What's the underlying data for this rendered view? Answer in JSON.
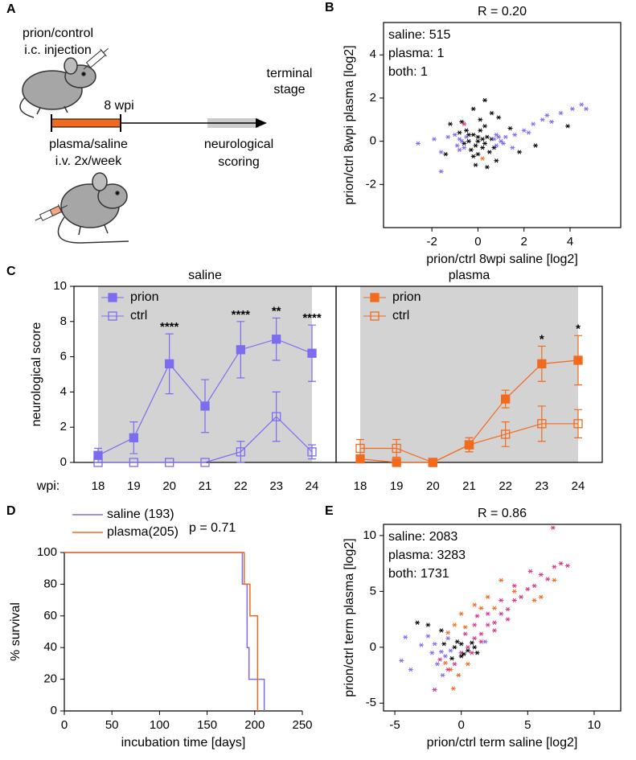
{
  "panel_labels": [
    "A",
    "B",
    "C",
    "D",
    "E"
  ],
  "diagram": {
    "injection": [
      "prion/control",
      "i.c. injection"
    ],
    "duration": "8 wpi",
    "endpoint": [
      "terminal",
      "stage"
    ],
    "treatment": [
      "plasma/saline",
      "i.v. 2x/week"
    ],
    "scoring": [
      "neurological",
      "scoring"
    ]
  },
  "chart_data": [
    {
      "type": "scatter",
      "title": "R = 0.20",
      "frame": true,
      "xlabel": "prion/ctrl 8wpi saline [log2]",
      "ylabel": "prion/ctrl 8wpi plasma [log2]",
      "xlim": [
        -4.1,
        6.2
      ],
      "ylim": [
        -4,
        5.5
      ],
      "xticks": [
        -2,
        0,
        2,
        4
      ],
      "yticks": [
        -2,
        0,
        2,
        4
      ],
      "series": [
        {
          "color": "#000000",
          "x": [
            -0.4,
            -0.2,
            0,
            0.2,
            0.4,
            -0.3,
            0.1,
            0,
            0.3,
            -0.2,
            0.5,
            -0.5,
            0.1,
            -0.1,
            0.6,
            0.4,
            -0.7,
            0.8,
            1.4,
            -1.4,
            0.3,
            -0.2,
            0.9,
            1.8,
            -1.2,
            3.9,
            2.5,
            0,
            -0.1,
            0.2,
            -0.6,
            0.6,
            -0.4,
            0.3,
            -0.8,
            0.7
          ],
          "values": [
            0,
            0.3,
            0,
            -0.3,
            0.2,
            -0.4,
            0.5,
            -0.6,
            0.7,
            -0.7,
            -0.5,
            0.5,
            1.0,
            -1.1,
            1.3,
            -1.2,
            0.9,
            -0.9,
            0.6,
            -0.6,
            1.9,
            1.5,
            1.1,
            -0.5,
            0.8,
            0.7,
            -0.2,
            0.2,
            -0.2,
            0.1,
            -0.1,
            0.1,
            0.3,
            -0.1,
            0.4,
            -0.3
          ]
        },
        {
          "name": "saline: 515",
          "color": "#7b6cf0",
          "x": [
            -2.6,
            -1.9,
            -1.6,
            -1.3,
            -0.9,
            -0.8,
            -0.7,
            -0.6,
            -0.5,
            -1.0,
            -0.8,
            0.7,
            0.8,
            0.9,
            1.0,
            1.1,
            0.8,
            1.2,
            1.6,
            2.0,
            2.4,
            2.8,
            3.2,
            3.6,
            4.1,
            4.5,
            4.7,
            2.2,
            3.0,
            -1.6,
            1.5
          ],
          "values": [
            -0.1,
            0.1,
            -0.5,
            0.2,
            -0.2,
            0.1,
            0.0,
            -0.3,
            0.2,
            0.3,
            -0.4,
            0.1,
            -0.2,
            0.2,
            0.0,
            -0.1,
            0.3,
            0.2,
            0.3,
            0.5,
            0.8,
            1.0,
            0.9,
            1.3,
            1.5,
            1.7,
            1.5,
            0.4,
            1.2,
            -1.4,
            -0.3
          ]
        },
        {
          "name": "plasma: 1",
          "color": "#f26a1e",
          "x": [
            0.2
          ],
          "values": [
            -0.8
          ]
        },
        {
          "name": "both: 1",
          "color": "#d6338a",
          "x": [
            -0.6
          ],
          "values": [
            0.8
          ]
        }
      ]
    },
    {
      "type": "line",
      "title": "saline",
      "frame": true,
      "shade": true,
      "ylabel": "neurological score",
      "xlabel": "wpi:",
      "categories": [
        "18",
        "19",
        "20",
        "21",
        "22",
        "23",
        "24"
      ],
      "ylim": [
        0,
        10
      ],
      "yticks": [
        0,
        2,
        4,
        6,
        8,
        10
      ],
      "series": [
        {
          "name": "prion",
          "color": "#7b6cf0",
          "marker": "square-filled",
          "values": [
            0.4,
            1.4,
            5.6,
            3.2,
            6.4,
            7.0,
            6.2
          ],
          "errors": [
            0.4,
            0.9,
            1.7,
            1.5,
            1.6,
            1.2,
            1.6
          ]
        },
        {
          "name": "ctrl",
          "color": "#7b6cf0",
          "marker": "square-open",
          "values": [
            0,
            0,
            0,
            0,
            0.6,
            2.6,
            0.6
          ],
          "errors": [
            0,
            0,
            0,
            0,
            0.6,
            1.4,
            0.4
          ]
        }
      ],
      "annotations": [
        {
          "text": "****",
          "x": "20"
        },
        {
          "text": "****",
          "x": "22"
        },
        {
          "text": "**",
          "x": "23"
        },
        {
          "text": "****",
          "x": "24"
        }
      ]
    },
    {
      "type": "line",
      "title": "plasma",
      "frame": true,
      "shade": true,
      "categories": [
        "18",
        "19",
        "20",
        "21",
        "22",
        "23",
        "24"
      ],
      "ylim": [
        0,
        10
      ],
      "series": [
        {
          "name": "prion",
          "color": "#f26a1e",
          "marker": "square-filled",
          "values": [
            0.2,
            0,
            0,
            1.0,
            3.6,
            5.6,
            5.8
          ],
          "errors": [
            0,
            0,
            0,
            0.4,
            0.5,
            1.0,
            1.4
          ]
        },
        {
          "name": "ctrl",
          "color": "#f26a1e",
          "marker": "square-open",
          "values": [
            0.8,
            0.8,
            0,
            1.0,
            1.6,
            2.2,
            2.2
          ],
          "errors": [
            0.5,
            0.5,
            0,
            0.4,
            0.7,
            1.0,
            0.8
          ]
        }
      ],
      "annotations": [
        {
          "text": "*",
          "x": "23"
        },
        {
          "text": "*",
          "x": "24"
        }
      ]
    },
    {
      "type": "step",
      "annotation": "p = 0.71",
      "xlabel": "incubation time [days]",
      "ylabel": "% survival",
      "xlim": [
        0,
        250
      ],
      "ylim": [
        0,
        100
      ],
      "xticks": [
        0,
        50,
        100,
        150,
        200,
        250
      ],
      "yticks": [
        0,
        20,
        40,
        60,
        80,
        100
      ],
      "series": [
        {
          "name": "saline (193)",
          "color": "#7b6cf0",
          "x": [
            0,
            187,
            192,
            194,
            210
          ],
          "values": [
            100,
            80,
            40,
            20,
            0
          ]
        },
        {
          "name": "plasma(205)",
          "color": "#f26a1e",
          "x": [
            0,
            189,
            195,
            203
          ],
          "values": [
            100,
            80,
            60,
            0
          ]
        }
      ]
    },
    {
      "type": "scatter",
      "title": "R = 0.86",
      "frame": true,
      "xlabel": "prion/ctrl term saline [log2]",
      "ylabel": "prion/ctrl term plasma [log2]",
      "xlim": [
        -5.85,
        12
      ],
      "ylim": [
        -5.7,
        11
      ],
      "xticks": [
        -5,
        0,
        5,
        10
      ],
      "yticks": [
        -5,
        0,
        5,
        10
      ],
      "series": [
        {
          "name": "saline: 2083",
          "color": "#7b6cf0",
          "x": [
            -4.2,
            -3,
            -2.2,
            -2,
            -1.5,
            -1.8,
            -3.8,
            -1,
            -2.5,
            -0.8,
            -1.2,
            1.8,
            -4.5,
            -1.4
          ],
          "values": [
            0.9,
            0.2,
            -0.5,
            0.3,
            -0.4,
            -1.5,
            -2,
            0.8,
            1,
            -0.3,
            -0.8,
            0.5,
            -1.2,
            -2.5
          ]
        },
        {
          "name": "plasma: 3283",
          "color": "#f26a1e",
          "x": [
            -1,
            -0.5,
            0,
            0.3,
            1,
            2,
            3,
            4,
            5.5,
            6,
            7,
            -0.8,
            -0.2,
            0.5,
            -1.2,
            1.5,
            2.5,
            -0.6
          ],
          "values": [
            1.3,
            2,
            3,
            1.8,
            3.8,
            4.5,
            6,
            5,
            4.2,
            4.5,
            6,
            -2,
            -2.5,
            -1.5,
            -1.4,
            3.5,
            3.5,
            -3.7
          ]
        },
        {
          "name": "both: 1731",
          "color": "#d6338a",
          "x": [
            -0.5,
            0,
            0.5,
            1,
            1.5,
            2,
            2.5,
            3,
            3.5,
            4,
            4.5,
            5,
            5.5,
            6,
            6.5,
            7,
            7.5,
            8,
            6.9,
            5.2,
            4,
            3,
            2,
            1,
            1.5,
            2.5,
            3.5,
            0.8,
            -1,
            -2,
            0.3,
            1.2,
            -1.6
          ],
          "values": [
            -1.5,
            -0.5,
            0,
            0.8,
            1.2,
            2,
            2.2,
            3,
            3.4,
            4.2,
            4.5,
            5.2,
            5.5,
            6.5,
            6.1,
            7.2,
            7.5,
            7.3,
            10.7,
            6.8,
            5.5,
            4.2,
            3,
            2,
            0.5,
            1.5,
            2.5,
            -0.5,
            -2,
            -3.8,
            1.2,
            2.8,
            -1.1
          ]
        },
        {
          "color": "#000000",
          "x": [
            -0.5,
            0,
            0.5,
            0.2,
            -0.3,
            1,
            1.2,
            -1.5,
            -2.5,
            -3.3,
            -1.3,
            0.8,
            0,
            -0.7
          ],
          "values": [
            0,
            0.3,
            -0.3,
            -0.6,
            0.5,
            0,
            -0.5,
            1.5,
            2,
            2.2,
            0.3,
            0.4,
            -0.8,
            -1
          ]
        }
      ]
    }
  ]
}
